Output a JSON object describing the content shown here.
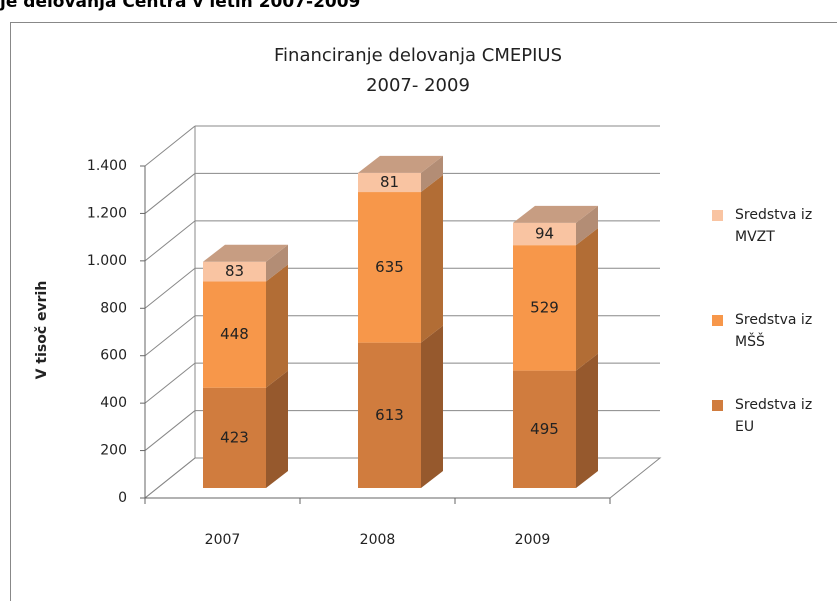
{
  "heading": "je delovanja Centra v letih 2007-2009",
  "chart_data": {
    "type": "bar3d_stacked",
    "title": "Financiranje delovanja CMEPIUS",
    "subtitle": "2007- 2009",
    "y_label": "V tisoč evrih",
    "categories": [
      "2007",
      "2008",
      "2009"
    ],
    "series": [
      {
        "name": "Sredstva iz EU",
        "color": "#d07c3e",
        "values": [
          423,
          613,
          495
        ]
      },
      {
        "name": "Sredstva iz MŠŠ",
        "color": "#f7974a",
        "values": [
          448,
          635,
          529
        ]
      },
      {
        "name": "Sredstva iz MVZT",
        "color": "#f9c4a2",
        "values": [
          83,
          81,
          94
        ]
      }
    ],
    "ylim": [
      0,
      1400
    ],
    "yticks": [
      0,
      200,
      400,
      600,
      800,
      {
        "value": 1000,
        "label": "1.000"
      },
      {
        "value": 1200,
        "label": "1.200"
      },
      {
        "value": 1400,
        "label": "1.400"
      }
    ],
    "grid": true,
    "legend": "right"
  }
}
